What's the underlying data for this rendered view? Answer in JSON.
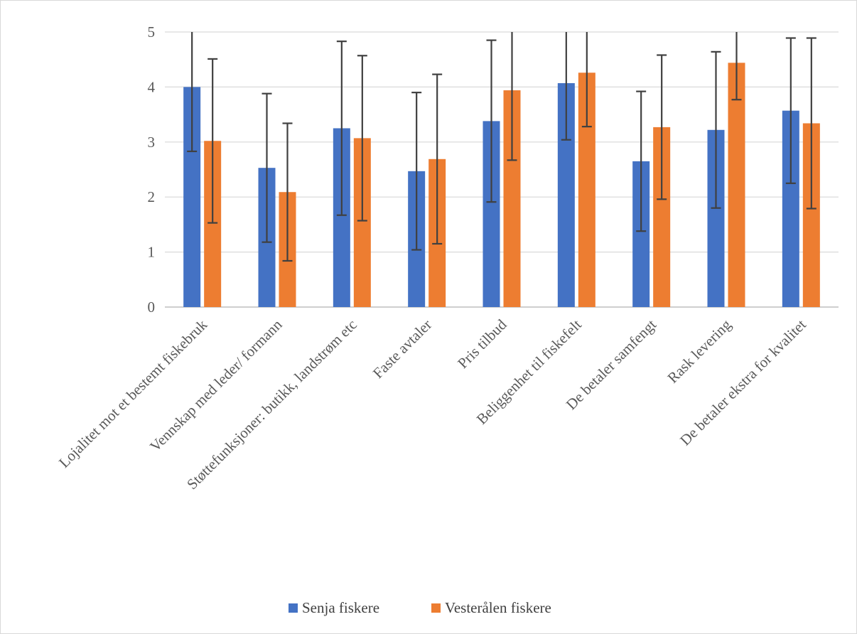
{
  "chart_data": {
    "type": "bar",
    "title": "",
    "xlabel": "",
    "ylabel": "",
    "ylim": [
      0,
      5
    ],
    "yticks": [
      0,
      1,
      2,
      3,
      4,
      5
    ],
    "grid": true,
    "legend_position": "bottom",
    "categories": [
      "Lojalitet mot et bestemt fiskebruk",
      "Vennskap med leder/ formann",
      "Støttefunksjoner: butikk, landstrøm etc",
      "Faste avtaler",
      "Pris tilbud",
      "Beliggenhet til fiskefelt",
      "De betaler samfengt",
      "Rask levering",
      "De betaler ekstra for kvalitet"
    ],
    "series": [
      {
        "name": "Senja fiskere",
        "color": "#4472c4",
        "values": [
          4.0,
          2.53,
          3.25,
          2.47,
          3.38,
          4.07,
          2.65,
          3.22,
          3.57
        ],
        "error": [
          1.17,
          1.35,
          1.58,
          1.43,
          1.47,
          1.03,
          1.27,
          1.42,
          1.32
        ]
      },
      {
        "name": "Vesterålen fiskere",
        "color": "#ed7d31",
        "values": [
          3.02,
          2.09,
          3.07,
          2.69,
          3.94,
          4.26,
          3.27,
          4.44,
          3.34
        ],
        "error": [
          1.49,
          1.25,
          1.5,
          1.54,
          1.27,
          0.98,
          1.31,
          0.67,
          1.55
        ]
      }
    ]
  }
}
